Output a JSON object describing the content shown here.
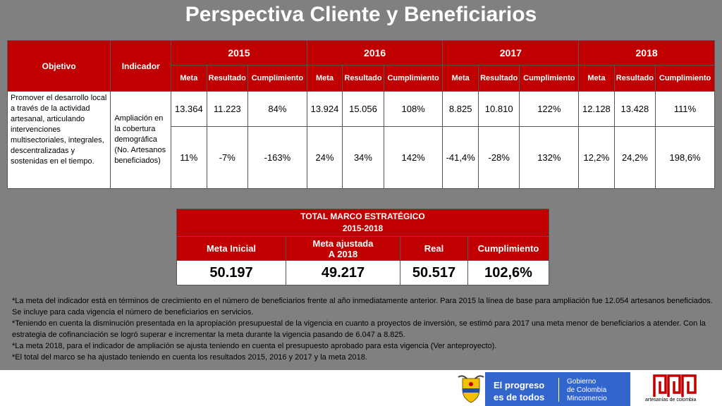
{
  "title": "Perspectiva Cliente y Beneficiarios",
  "table1": {
    "col_objetivo": "Objetivo",
    "col_indicador": "Indicador",
    "years": [
      "2015",
      "2016",
      "2017",
      "2018"
    ],
    "sub_meta": "Meta",
    "sub_resultado": "Resultado",
    "sub_cumplimiento": "Cumplimiento",
    "objetivo_text": "Promover el desarrollo local a través de la actividad artesanal, articulando intervenciones multisectoriales, integrales, descentralizadas y sostenidas en el tiempo.",
    "indicador_text": "Ampliación en la cobertura demográfica (No. Artesanos beneficiados)",
    "row1": [
      "13.364",
      "11.223",
      "84%",
      "13.924",
      "15.056",
      "108%",
      "8.825",
      "10.810",
      "122%",
      "12.128",
      "13.428",
      "111%"
    ],
    "row2": [
      "11%",
      "-7%",
      "-163%",
      "24%",
      "34%",
      "142%",
      "-41,4%",
      "-28%",
      "132%",
      "12,2%",
      "24,2%",
      "198,6%"
    ]
  },
  "table2": {
    "header_line1": "TOTAL MARCO ESTRATÉGICO",
    "header_line2": "2015-2018",
    "col1": "Meta Inicial",
    "col2_line1": "Meta ajustada",
    "col2_line2": "A 2018",
    "col3": "Real",
    "col4": "Cumplimiento",
    "values": [
      "50.197",
      "49.217",
      "50.517",
      "102,6%"
    ]
  },
  "notes": [
    "*La meta del indicador está en términos de crecimiento en el número de beneficiarios frente al año inmediatamente anterior. Para 2015 la línea de base para ampliación fue 12.054 artesanos beneficiados. Se incluye para cada vigencia el número de beneficiarios en servicios.",
    "*Teniendo en cuenta la disminución presentada en la apropiación presupuestal de la vigencia en cuanto a proyectos de inversión, se estimó para 2017 una meta menor de beneficiarios a atender. Con la estrategia de  cofinanciación se logró superar e incrementar la meta durante la vigencia pasando de 6.047 a 8.825.",
    "*La meta 2018, para el indicador de ampliación se ajusta teniendo en cuenta el presupuesto aprobado para esta vigencia (Ver anteproyecto).",
    "*El total del marco se ha ajustado teniendo en cuenta los resultados 2015, 2016 y 2017 y la meta 2018."
  ],
  "footer": {
    "slogan_line1": "El progreso",
    "slogan_line2": "es de todos",
    "gov_line1": "Gobierno",
    "gov_line2": "de Colombia",
    "gov_line3": "Mincomercio",
    "brand": "artesanías de colombia",
    "accent_red": "#c00000",
    "gov_blue": "#3366cc"
  }
}
